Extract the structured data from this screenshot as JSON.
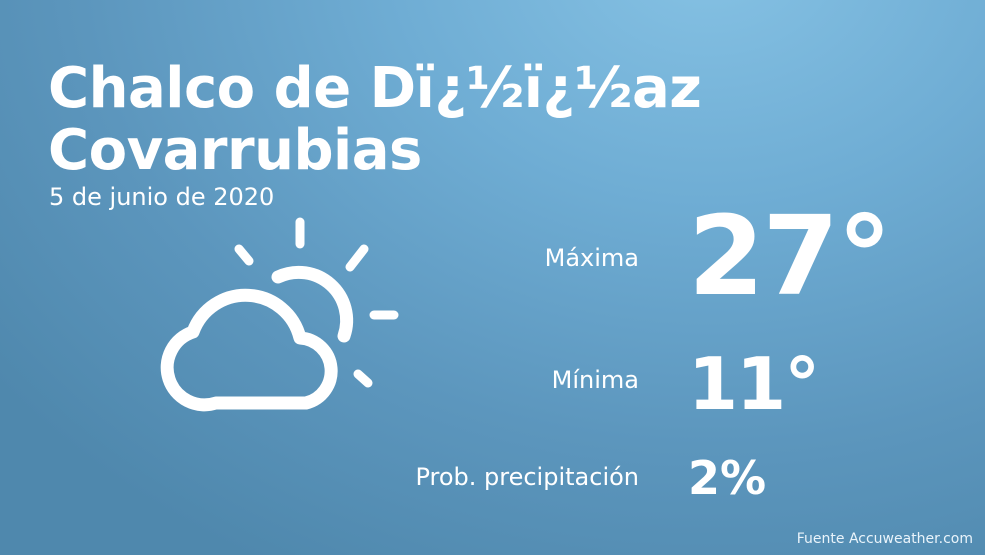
{
  "location": {
    "line1": "Chalco de Dï¿½ï¿½az",
    "line2": "Covarrubias"
  },
  "date": "5 de junio de 2020",
  "forecast": {
    "icon": "partly-cloudy-icon",
    "max_label": "Máxima",
    "max_value": "27°",
    "min_label": "Mínima",
    "min_value": "11°",
    "precip_label": "Prob. precipitación",
    "precip_value": "2%"
  },
  "source": "Fuente Accuweather.com",
  "colors": {
    "background_light": "#86c2e4",
    "background_dark": "#4f88ad",
    "text": "#ffffff"
  }
}
